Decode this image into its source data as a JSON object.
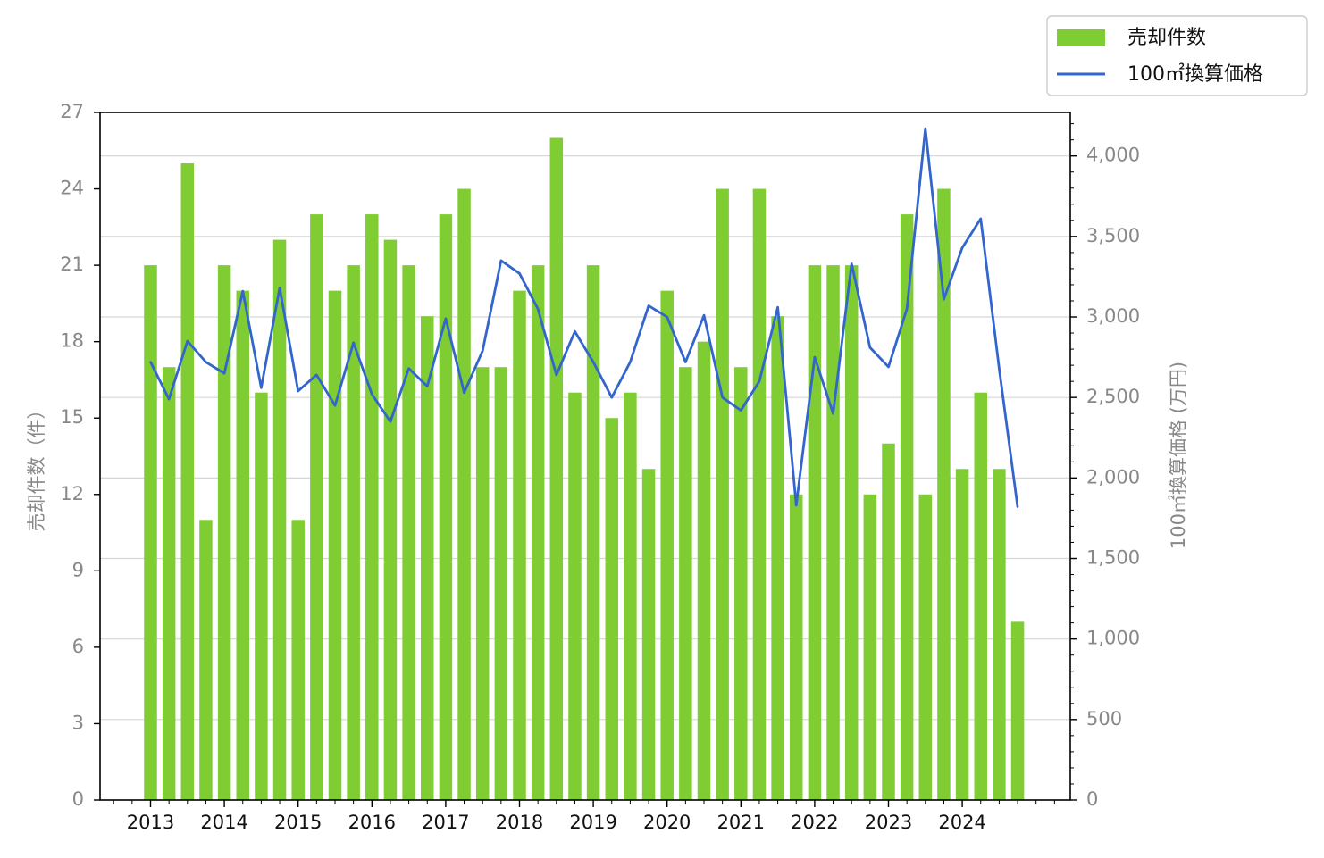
{
  "chart_data": {
    "type": "bar+line",
    "title": "",
    "x_tick_labels": [
      "2013",
      "2014",
      "2015",
      "2016",
      "2017",
      "2018",
      "2019",
      "2020",
      "2021",
      "2022",
      "2023",
      "2024"
    ],
    "left_axis": {
      "label": "売却件数（件）",
      "ylim": [
        0,
        27
      ],
      "ticks": [
        "0",
        "3",
        "6",
        "9",
        "12",
        "15",
        "18",
        "21",
        "24",
        "27"
      ]
    },
    "right_axis": {
      "label": "100㎡換算価格 (万円)",
      "ylim": [
        0,
        4270
      ],
      "ticks": [
        "0",
        "500",
        "1,000",
        "1,500",
        "2,000",
        "2,500",
        "3,000",
        "3,500",
        "4,000"
      ]
    },
    "grid": "horizontal",
    "legend_position": "top-right",
    "series": [
      {
        "name": "売却件数",
        "type": "bar",
        "axis": "left",
        "color": "#80cc33",
        "values": [
          21,
          17,
          25,
          11,
          21,
          20,
          16,
          22,
          11,
          23,
          20,
          21,
          23,
          22,
          21,
          19,
          23,
          24,
          17,
          17,
          20,
          21,
          26,
          16,
          21,
          15,
          16,
          13,
          20,
          17,
          18,
          24,
          17,
          24,
          19,
          12,
          21,
          21,
          21,
          12,
          14,
          23,
          12,
          24,
          13,
          16,
          13,
          7
        ]
      },
      {
        "name": "100㎡換算価格",
        "type": "line",
        "axis": "right",
        "color": "#3366cc",
        "values": [
          2720,
          2490,
          2850,
          2720,
          2650,
          3160,
          2560,
          3180,
          2540,
          2640,
          2450,
          2840,
          2520,
          2350,
          2680,
          2570,
          2990,
          2530,
          2790,
          3350,
          3270,
          3050,
          2640,
          2910,
          2720,
          2500,
          2720,
          3070,
          3000,
          2720,
          3010,
          2500,
          2420,
          2600,
          3060,
          1830,
          2750,
          2400,
          3330,
          2810,
          2690,
          3050,
          4170,
          3110,
          3430,
          3610,
          2680,
          1820
        ]
      }
    ]
  }
}
